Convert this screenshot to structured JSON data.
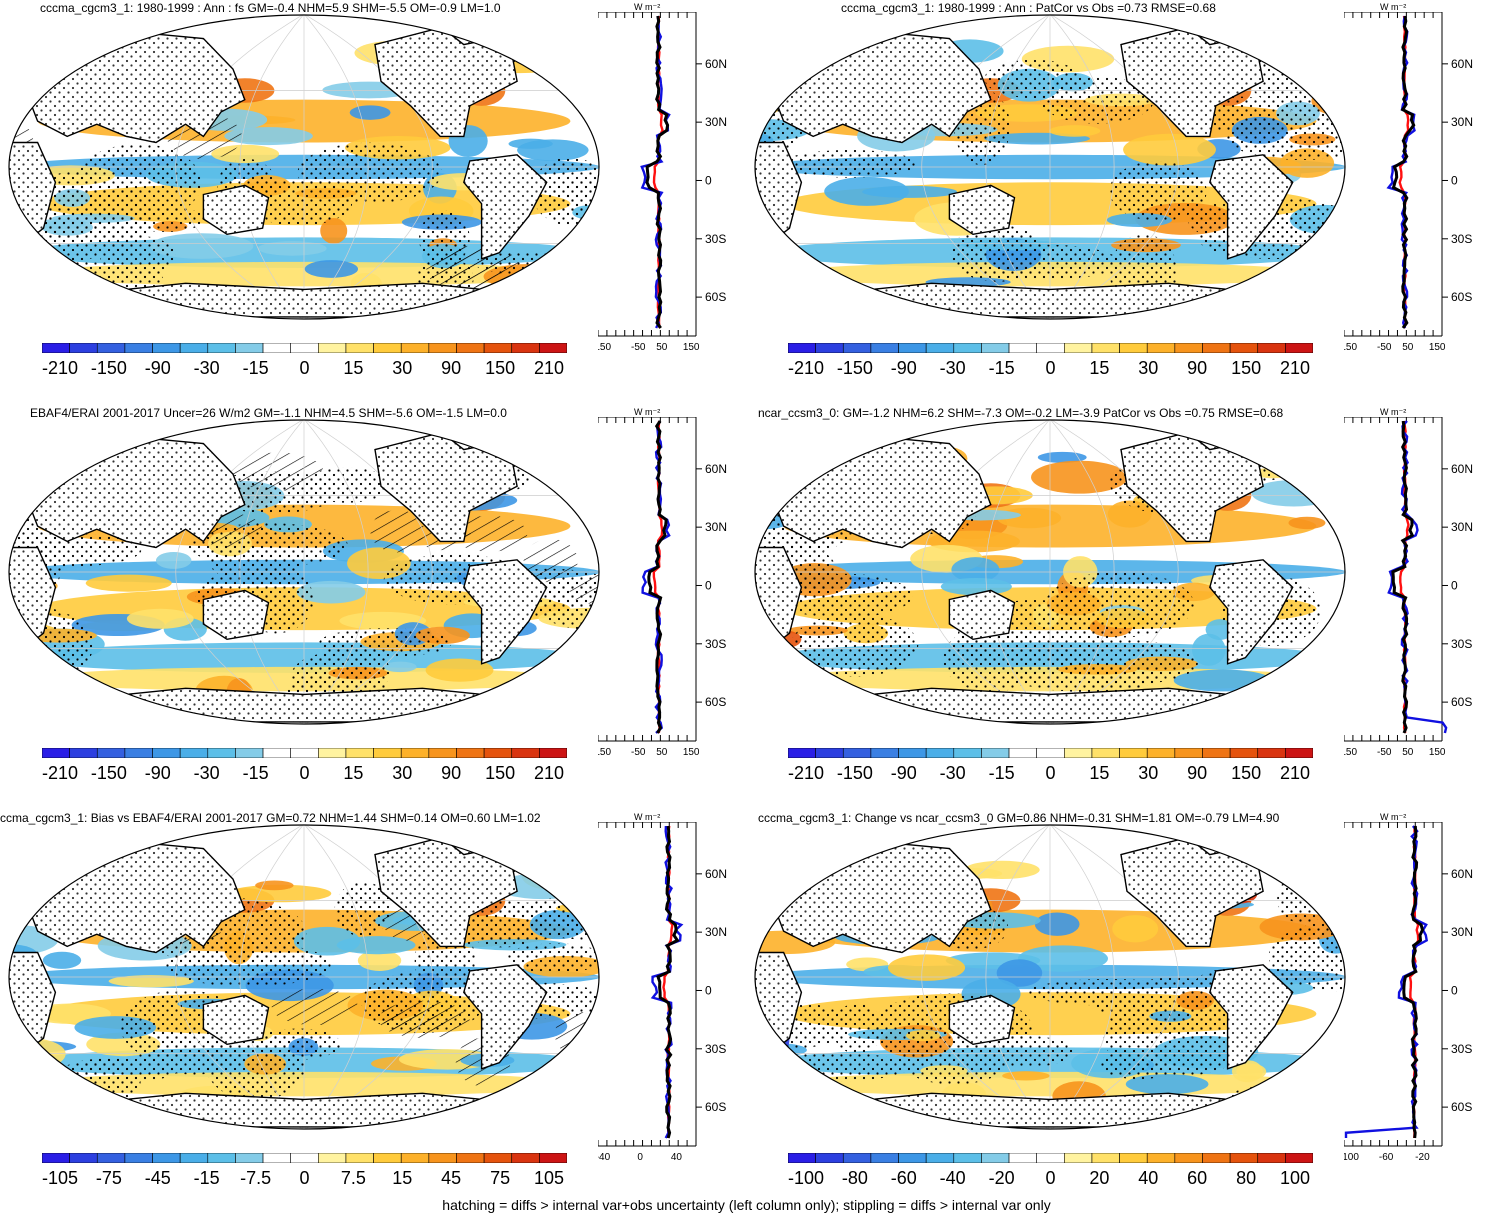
{
  "panels": [
    {
      "id": "p1",
      "title": "cccma_cgcm3_1: 1980-1999 : Ann : fs GM=-0.4 NHM=5.9 SHM=-5.5 OM=-0.9 LM=1.0",
      "colorbar": [
        "-210",
        "-150",
        "-90",
        "-30",
        "-15",
        "0",
        "15",
        "30",
        "90",
        "150",
        "210"
      ],
      "profile_x_ticks": [
        "-150",
        "-50",
        "50",
        "150"
      ],
      "profile_y_ticks": [
        "60N",
        "30N",
        "0",
        "30S",
        "60S"
      ],
      "profile_unit": "W m⁻²",
      "hatching": true
    },
    {
      "id": "p2",
      "title": "cccma_cgcm3_1: 1980-1999 : Ann : PatCor vs Obs =0.73 RMSE=0.68",
      "colorbar": [
        "-210",
        "-150",
        "-90",
        "-30",
        "-15",
        "0",
        "15",
        "30",
        "90",
        "150",
        "210"
      ],
      "profile_x_ticks": [
        "-150",
        "-50",
        "50",
        "150"
      ],
      "profile_y_ticks": [
        "60N",
        "30N",
        "0",
        "30S",
        "60S"
      ],
      "profile_unit": "W m⁻²",
      "hatching": false
    },
    {
      "id": "p3",
      "title": "EBAF4/ERAI 2001-2017 Uncer=26 W/m2 GM=-1.1 NHM=4.5 SHM=-5.6 OM=-1.5 LM=0.0",
      "colorbar": [
        "-210",
        "-150",
        "-90",
        "-30",
        "-15",
        "0",
        "15",
        "30",
        "90",
        "150",
        "210"
      ],
      "profile_x_ticks": [
        "-150",
        "-50",
        "50",
        "150"
      ],
      "profile_y_ticks": [
        "60N",
        "30N",
        "0",
        "30S",
        "60S"
      ],
      "profile_unit": "W m⁻²",
      "hatching": true
    },
    {
      "id": "p4",
      "title": "ncar_ccsm3_0: GM=-1.2 NHM=6.2 SHM=-7.3 OM=-0.2 LM=-3.9 PatCor vs Obs =0.75 RMSE=0.68",
      "colorbar": [
        "-210",
        "-150",
        "-90",
        "-30",
        "-15",
        "0",
        "15",
        "30",
        "90",
        "150",
        "210"
      ],
      "profile_x_ticks": [
        "-150",
        "-50",
        "50",
        "150"
      ],
      "profile_y_ticks": [
        "60N",
        "30N",
        "0",
        "30S",
        "60S"
      ],
      "profile_unit": "W m⁻²",
      "hatching": false
    },
    {
      "id": "p5",
      "title": "ccma_cgcm3_1: Bias vs EBAF4/ERAI 2001-2017 GM=0.72 NHM=1.44 SHM=0.14 OM=0.60 LM=1.02",
      "colorbar": [
        "-105",
        "-75",
        "-45",
        "-15",
        "-7.5",
        "0",
        "7.5",
        "15",
        "45",
        "75",
        "105"
      ],
      "profile_x_ticks": [
        "-40",
        "0",
        "40"
      ],
      "profile_y_ticks": [
        "60N",
        "30N",
        "0",
        "30S",
        "60S"
      ],
      "profile_unit": "W m⁻²",
      "hatching": true
    },
    {
      "id": "p6",
      "title": "cccma_cgcm3_1: Change vs ncar_ccsm3_0 GM=0.86 NHM=-0.31 SHM=1.81 OM=-0.79 LM=4.90",
      "colorbar": [
        "-100",
        "-80",
        "-60",
        "-40",
        "-20",
        "0",
        "20",
        "40",
        "60",
        "80",
        "100"
      ],
      "profile_x_ticks": [
        "-100",
        "-60",
        "-20"
      ],
      "profile_y_ticks": [
        "60N",
        "30N",
        "0",
        "30S",
        "60S"
      ],
      "profile_unit": "W m⁻²",
      "hatching": false
    }
  ],
  "colorbar_colors": [
    "#2a1ee6",
    "#2c3fe0",
    "#3460e0",
    "#3a7fe3",
    "#3d97e6",
    "#4aaee8",
    "#5cbfe8",
    "#84cce8",
    "#ffffff",
    "#ffffff",
    "#fff3a0",
    "#ffe169",
    "#ffcb3c",
    "#fdb12a",
    "#f7941d",
    "#ef7414",
    "#e5530d",
    "#d93410",
    "#cc1414"
  ],
  "profile_line_colors": {
    "model": "#ff1010",
    "obs": "#1010e0",
    "mean": "#000000"
  },
  "footer": "hatching = diffs > internal var+obs uncertainty (left column only); stippling = diffs > internal var only"
}
